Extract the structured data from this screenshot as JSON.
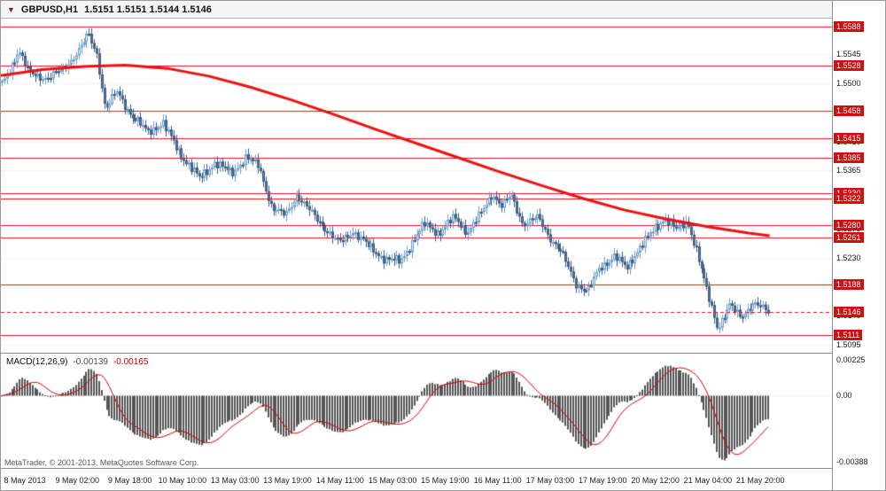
{
  "window": {
    "symbol_period": "GBPUSD,H1",
    "ohlc": "1.5151 1.5151 1.5144 1.5146"
  },
  "copyright": "MetaTrader, © 2001-2013, MetaQuotes Software Corp.",
  "colors": {
    "grid": "#d4d4d4",
    "level_line": "#ee1010",
    "ma_line": "#ee1010",
    "badge_bg": "#d01010",
    "candle_up_fill": "#eaf3fb",
    "candle_up_border": "#6b9dc8",
    "candle_down_fill": "#55779b",
    "candle_down_border": "#3c5c7d",
    "macd_bar": "#555555",
    "macd_signal": "#d00000"
  },
  "chart_data": [
    {
      "type": "candlestick",
      "symbol": "GBPUSD",
      "timeframe": "H1",
      "current_price": 1.5146,
      "candle_count": 300,
      "plot_fraction": 0.925,
      "y_axis": {
        "min": 1.5083,
        "max": 1.56,
        "ticks": [
          1.5545,
          1.55,
          1.5455,
          1.541,
          1.5365,
          1.532,
          1.5275,
          1.523,
          1.5185,
          1.514,
          1.5095
        ]
      },
      "x_axis": {
        "labels": [
          "8 May 2013",
          "9 May 02:00",
          "9 May 18:00",
          "10 May 10:00",
          "13 May 03:00",
          "13 May 19:00",
          "14 May 11:00",
          "15 May 03:00",
          "15 May 19:00",
          "16 May 11:00",
          "17 May 03:00",
          "17 May 19:00",
          "20 May 12:00",
          "21 May 04:00",
          "21 May 20:00"
        ]
      },
      "levels": [
        1.5588,
        1.5528,
        1.5458,
        1.5415,
        1.5385,
        1.533,
        1.5322,
        1.528,
        1.5261,
        1.5188,
        1.5111
      ],
      "price_path": [
        [
          0.0,
          1.5498
        ],
        [
          0.01,
          1.552
        ],
        [
          0.022,
          1.5552
        ],
        [
          0.035,
          1.5515
        ],
        [
          0.06,
          1.5508
        ],
        [
          0.08,
          1.5522
        ],
        [
          0.1,
          1.555
        ],
        [
          0.113,
          1.5576
        ],
        [
          0.124,
          1.5545
        ],
        [
          0.135,
          1.5458
        ],
        [
          0.15,
          1.5488
        ],
        [
          0.17,
          1.5448
        ],
        [
          0.19,
          1.5425
        ],
        [
          0.21,
          1.5438
        ],
        [
          0.232,
          1.5392
        ],
        [
          0.258,
          1.5352
        ],
        [
          0.278,
          1.5378
        ],
        [
          0.3,
          1.536
        ],
        [
          0.318,
          1.5386
        ],
        [
          0.335,
          1.5372
        ],
        [
          0.352,
          1.5308
        ],
        [
          0.37,
          1.5295
        ],
        [
          0.385,
          1.5328
        ],
        [
          0.402,
          1.5302
        ],
        [
          0.42,
          1.5278
        ],
        [
          0.44,
          1.5252
        ],
        [
          0.458,
          1.5272
        ],
        [
          0.478,
          1.5248
        ],
        [
          0.5,
          1.5228
        ],
        [
          0.52,
          1.5224
        ],
        [
          0.537,
          1.5258
        ],
        [
          0.552,
          1.5282
        ],
        [
          0.57,
          1.5268
        ],
        [
          0.59,
          1.5292
        ],
        [
          0.608,
          1.527
        ],
        [
          0.625,
          1.5298
        ],
        [
          0.64,
          1.533
        ],
        [
          0.652,
          1.531
        ],
        [
          0.665,
          1.5326
        ],
        [
          0.68,
          1.5282
        ],
        [
          0.7,
          1.5292
        ],
        [
          0.715,
          1.5262
        ],
        [
          0.73,
          1.5238
        ],
        [
          0.75,
          1.5188
        ],
        [
          0.765,
          1.5178
        ],
        [
          0.78,
          1.5215
        ],
        [
          0.8,
          1.5232
        ],
        [
          0.815,
          1.5214
        ],
        [
          0.83,
          1.5242
        ],
        [
          0.85,
          1.5272
        ],
        [
          0.865,
          1.5292
        ],
        [
          0.88,
          1.5274
        ],
        [
          0.895,
          1.5286
        ],
        [
          0.906,
          1.5244
        ],
        [
          0.92,
          1.5178
        ],
        [
          0.934,
          1.5122
        ],
        [
          0.95,
          1.5156
        ],
        [
          0.964,
          1.5138
        ],
        [
          0.98,
          1.516
        ],
        [
          1.0,
          1.5146
        ]
      ],
      "ma_path": [
        [
          0.0,
          1.5512
        ],
        [
          0.05,
          1.5521
        ],
        [
          0.1,
          1.5526
        ],
        [
          0.15,
          1.5528
        ],
        [
          0.2,
          1.5523
        ],
        [
          0.25,
          1.5511
        ],
        [
          0.3,
          1.5494
        ],
        [
          0.35,
          1.5474
        ],
        [
          0.4,
          1.5452
        ],
        [
          0.45,
          1.5429
        ],
        [
          0.5,
          1.5407
        ],
        [
          0.55,
          1.5385
        ],
        [
          0.6,
          1.5363
        ],
        [
          0.65,
          1.5342
        ],
        [
          0.7,
          1.5322
        ],
        [
          0.75,
          1.5304
        ],
        [
          0.8,
          1.529
        ],
        [
          0.85,
          1.5278
        ],
        [
          0.9,
          1.5268
        ],
        [
          0.925,
          1.5264
        ]
      ]
    },
    {
      "type": "bar",
      "title": "MACD(12,26,9)",
      "value_main": "-0.00139",
      "value_signal": "-0.00165",
      "y_axis": {
        "max": 0.00225,
        "min": -0.00388,
        "tick_labels": [
          "0.00225",
          "0.00",
          "-0.00388"
        ]
      },
      "note": "MACD main drawn as histogram, signal as red line; derived from price series with periods 12/26/9"
    }
  ]
}
